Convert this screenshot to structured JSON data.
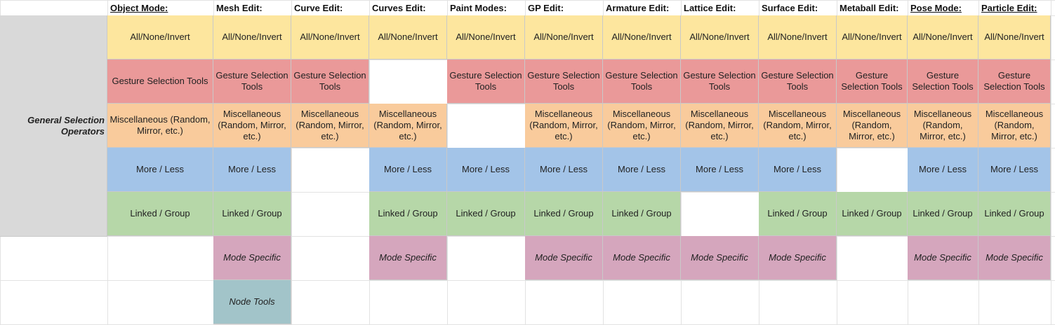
{
  "headers": [
    {
      "label": "Object Mode:",
      "underline": true
    },
    {
      "label": "Mesh Edit:",
      "underline": false
    },
    {
      "label": "Curve Edit:",
      "underline": false
    },
    {
      "label": "Curves Edit:",
      "underline": false
    },
    {
      "label": "Paint Modes:",
      "underline": false
    },
    {
      "label": "GP Edit:",
      "underline": false
    },
    {
      "label": "Armature Edit:",
      "underline": false
    },
    {
      "label": "Lattice Edit:",
      "underline": false
    },
    {
      "label": "Surface Edit:",
      "underline": false
    },
    {
      "label": "Metaball Edit:",
      "underline": false
    },
    {
      "label": "Pose Mode:",
      "underline": true
    },
    {
      "label": "Particle Edit:",
      "underline": true
    }
  ],
  "side_label": "General Selection Operators",
  "categories": {
    "all": {
      "color": "#fde69e",
      "text": "All/None/Invert"
    },
    "gest": {
      "color": "#ea9999",
      "text": "Gesture Selection Tools"
    },
    "misc": {
      "color": "#f9cb9c",
      "text": "Miscellaneous (Random, Mirror, etc.)"
    },
    "more": {
      "color": "#a3c4e8",
      "text": "More / Less"
    },
    "link": {
      "color": "#b6d7a8",
      "text": "Linked / Group"
    },
    "mode": {
      "color": "#d5a6bd",
      "text": "Mode Specific"
    },
    "node": {
      "color": "#a2c4c9",
      "text": "Node Tools"
    }
  },
  "rows": [
    [
      "all",
      "all",
      "all",
      "all",
      "all",
      "all",
      "all",
      "all",
      "all",
      "all",
      "all",
      "all"
    ],
    [
      "gest",
      "gest",
      "gest",
      "",
      "gest",
      "gest",
      "gest",
      "gest",
      "gest",
      "gest",
      "gest",
      "gest"
    ],
    [
      "misc",
      "misc",
      "misc",
      "misc",
      "",
      "misc",
      "misc",
      "misc",
      "misc",
      "misc",
      "misc",
      "misc"
    ],
    [
      "more",
      "more",
      "",
      "more",
      "more",
      "more",
      "more",
      "more",
      "more",
      "",
      "more",
      "more"
    ],
    [
      "link",
      "link",
      "",
      "link",
      "link",
      "link",
      "link",
      "",
      "link",
      "link",
      "link",
      "link"
    ],
    [
      "",
      "mode",
      "",
      "mode",
      "",
      "mode",
      "mode",
      "mode",
      "mode",
      "",
      "mode",
      "mode"
    ],
    [
      "",
      "node",
      "",
      "",
      "",
      "",
      "",
      "",
      "",
      "",
      "",
      ""
    ]
  ]
}
